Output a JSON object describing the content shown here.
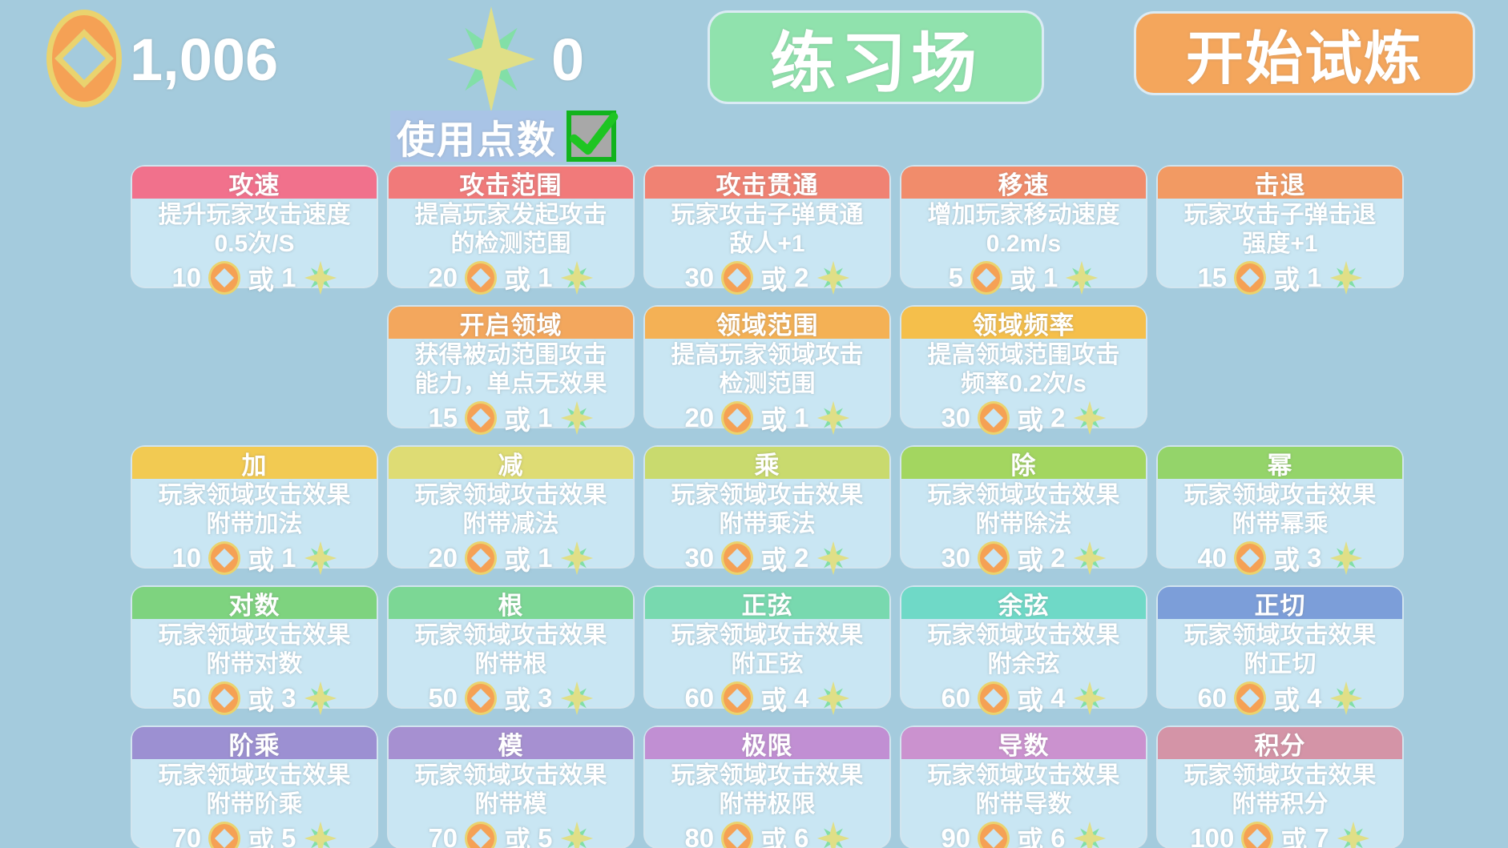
{
  "colors": {
    "page_bg": "#a4cbdd",
    "card_body": "#c9e6f3",
    "practice_green": "#90e2ad",
    "start_orange": "#f4a65c",
    "coin_orange": "#f5a155",
    "coin_rim": "#ead36e",
    "star_yellow": "#e0df87",
    "star_green": "#82dfa7",
    "use_points_bg": "#a9c4e6",
    "checkbox_green": "#12b31d",
    "checkbox_gray": "#a8a8a8",
    "check_mark": "#1ec522"
  },
  "header": {
    "coins": "1,006",
    "stars": "0",
    "practice_label": "练习场",
    "start_trial_label": "开始试炼",
    "use_points_label": "使用点数",
    "use_points_checked": true
  },
  "cost_word": "或",
  "card_rows": [
    [
      {
        "title": "攻速",
        "desc_line1": "提升玩家攻击速度",
        "desc_line2": "0.5次/S",
        "coin_cost": "10",
        "star_cost": "1",
        "header_color": "#f1718c"
      },
      {
        "title": "攻击范围",
        "desc_line1": "提高玩家发起攻击",
        "desc_line2": "的检测范围",
        "coin_cost": "20",
        "star_cost": "1",
        "header_color": "#f17a7a"
      },
      {
        "title": "攻击贯通",
        "desc_line1": "玩家攻击子弹贯通",
        "desc_line2": "敌人+1",
        "coin_cost": "30",
        "star_cost": "2",
        "header_color": "#f08273"
      },
      {
        "title": "移速",
        "desc_line1": "增加玩家移动速度",
        "desc_line2": "0.2m/s",
        "coin_cost": "5",
        "star_cost": "1",
        "header_color": "#f18c6b"
      },
      {
        "title": "击退",
        "desc_line1": "玩家攻击子弹击退",
        "desc_line2": "强度+1",
        "coin_cost": "15",
        "star_cost": "1",
        "header_color": "#f29a63"
      }
    ],
    [
      null,
      {
        "title": "开启领域",
        "desc_line1": "获得被动范围攻击",
        "desc_line2": "能力，单点无效果",
        "coin_cost": "15",
        "star_cost": "1",
        "header_color": "#f3a75d"
      },
      {
        "title": "领域范围",
        "desc_line1": "提高玩家领域攻击",
        "desc_line2": "检测范围",
        "coin_cost": "20",
        "star_cost": "1",
        "header_color": "#f4b155"
      },
      {
        "title": "领域频率",
        "desc_line1": "提高领域范围攻击",
        "desc_line2": "频率0.2次/s",
        "coin_cost": "30",
        "star_cost": "2",
        "header_color": "#f5bf4b"
      },
      null
    ],
    [
      {
        "title": "加",
        "desc_line1": "玩家领域攻击效果",
        "desc_line2": "附带加法",
        "coin_cost": "10",
        "star_cost": "1",
        "header_color": "#f2ca52"
      },
      {
        "title": "减",
        "desc_line1": "玩家领域攻击效果",
        "desc_line2": "附带减法",
        "coin_cost": "20",
        "star_cost": "1",
        "header_color": "#dedc74"
      },
      {
        "title": "乘",
        "desc_line1": "玩家领域攻击效果",
        "desc_line2": "附带乘法",
        "coin_cost": "30",
        "star_cost": "2",
        "header_color": "#c9da6e"
      },
      {
        "title": "除",
        "desc_line1": "玩家领域攻击效果",
        "desc_line2": "附带除法",
        "coin_cost": "30",
        "star_cost": "2",
        "header_color": "#a3d660"
      },
      {
        "title": "幂",
        "desc_line1": "玩家领域攻击效果",
        "desc_line2": "附带幂乘",
        "coin_cost": "40",
        "star_cost": "3",
        "header_color": "#94d46a"
      }
    ],
    [
      {
        "title": "对数",
        "desc_line1": "玩家领域攻击效果",
        "desc_line2": "附带对数",
        "coin_cost": "50",
        "star_cost": "3",
        "header_color": "#7ed37f"
      },
      {
        "title": "根",
        "desc_line1": "玩家领域攻击效果",
        "desc_line2": "附带根",
        "coin_cost": "50",
        "star_cost": "3",
        "header_color": "#7cd795"
      },
      {
        "title": "正弦",
        "desc_line1": "玩家领域攻击效果",
        "desc_line2": "附正弦",
        "coin_cost": "60",
        "star_cost": "4",
        "header_color": "#78d9af"
      },
      {
        "title": "余弦",
        "desc_line1": "玩家领域攻击效果",
        "desc_line2": "附余弦",
        "coin_cost": "60",
        "star_cost": "4",
        "header_color": "#6fd9c7"
      },
      {
        "title": "正切",
        "desc_line1": "玩家领域攻击效果",
        "desc_line2": "附正切",
        "coin_cost": "60",
        "star_cost": "4",
        "header_color": "#7c9ed9"
      }
    ],
    [
      {
        "title": "阶乘",
        "desc_line1": "玩家领域攻击效果",
        "desc_line2": "附带阶乘",
        "coin_cost": "70",
        "star_cost": "5",
        "header_color": "#9c90d2"
      },
      {
        "title": "模",
        "desc_line1": "玩家领域攻击效果",
        "desc_line2": "附带模",
        "coin_cost": "70",
        "star_cost": "5",
        "header_color": "#a690d1"
      },
      {
        "title": "极限",
        "desc_line1": "玩家领域攻击效果",
        "desc_line2": "附带极限",
        "coin_cost": "80",
        "star_cost": "6",
        "header_color": "#c18fd3"
      },
      {
        "title": "导数",
        "desc_line1": "玩家领域攻击效果",
        "desc_line2": "附带导数",
        "coin_cost": "90",
        "star_cost": "6",
        "header_color": "#cb92cf"
      },
      {
        "title": "积分",
        "desc_line1": "玩家领域攻击效果",
        "desc_line2": "附带积分",
        "coin_cost": "100",
        "star_cost": "7",
        "header_color": "#d494a7"
      }
    ]
  ]
}
